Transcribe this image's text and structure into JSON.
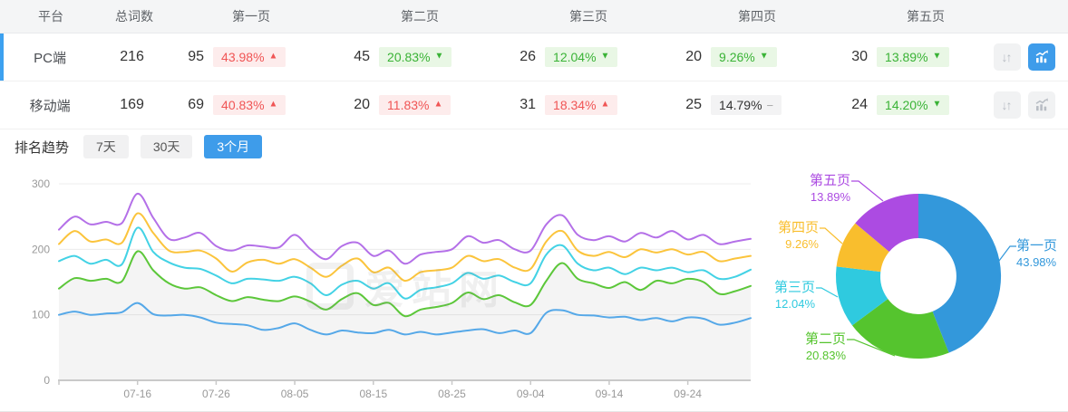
{
  "table": {
    "headers": [
      "平台",
      "总词数",
      "第一页",
      "第二页",
      "第三页",
      "第四页",
      "第五页"
    ],
    "rows": [
      {
        "platform": "PC端",
        "total": "216",
        "selected": true,
        "pages": [
          {
            "count": "95",
            "pct": "43.98%",
            "arrow": "▲",
            "state": "up"
          },
          {
            "count": "45",
            "pct": "20.83%",
            "arrow": "▼",
            "state": "down"
          },
          {
            "count": "26",
            "pct": "12.04%",
            "arrow": "▼",
            "state": "down"
          },
          {
            "count": "20",
            "pct": "9.26%",
            "arrow": "▼",
            "state": "down"
          },
          {
            "count": "30",
            "pct": "13.89%",
            "arrow": "▼",
            "state": "down"
          }
        ],
        "trend_button_active": true
      },
      {
        "platform": "移动端",
        "total": "169",
        "selected": false,
        "pages": [
          {
            "count": "69",
            "pct": "40.83%",
            "arrow": "▲",
            "state": "up"
          },
          {
            "count": "20",
            "pct": "11.83%",
            "arrow": "▲",
            "state": "up"
          },
          {
            "count": "31",
            "pct": "18.34%",
            "arrow": "▲",
            "state": "up"
          },
          {
            "count": "25",
            "pct": "14.79%",
            "arrow": "−",
            "state": "flat"
          },
          {
            "count": "24",
            "pct": "14.20%",
            "arrow": "▼",
            "state": "down"
          }
        ],
        "trend_button_active": false
      }
    ]
  },
  "trend": {
    "label": "排名趋势",
    "tabs": [
      {
        "label": "7天",
        "active": false
      },
      {
        "label": "30天",
        "active": false
      },
      {
        "label": "3个月",
        "active": true
      }
    ]
  },
  "watermark": "爱站网",
  "colors": {
    "accent": "#3e9cea",
    "up_red": "#f05555",
    "down_green": "#3ab336",
    "badge_red_bg": "#fdecec",
    "badge_green_bg": "#e9f7e5",
    "badge_gray_bg": "#f3f3f4"
  },
  "chart_data": [
    {
      "type": "line",
      "title": "排名趋势（3个月）",
      "xlabel": "",
      "ylabel": "",
      "ylim": [
        0,
        300
      ],
      "y_ticks": [
        0,
        100,
        200,
        300
      ],
      "grid": true,
      "x_ticks": [
        "07-16",
        "07-26",
        "08-05",
        "08-15",
        "08-25",
        "09-04",
        "09-14",
        "09-24"
      ],
      "tick_indices": [
        5,
        10,
        15,
        20,
        25,
        30,
        35,
        40
      ],
      "area_series_index": 1,
      "series": [
        {
          "name": "第一页",
          "color": "#55a8e8",
          "values": [
            100,
            105,
            100,
            102,
            104,
            118,
            101,
            99,
            100,
            96,
            88,
            86,
            84,
            77,
            80,
            87,
            77,
            70,
            76,
            73,
            72,
            77,
            70,
            74,
            70,
            73,
            76,
            78,
            72,
            76,
            72,
            103,
            107,
            100,
            99,
            96,
            97,
            92,
            95,
            90,
            96,
            94,
            85,
            88,
            95
          ]
        },
        {
          "name": "第二页",
          "color": "#5cc73a",
          "values": [
            140,
            156,
            152,
            155,
            151,
            197,
            168,
            148,
            140,
            142,
            130,
            121,
            127,
            123,
            121,
            128,
            120,
            108,
            124,
            133,
            115,
            118,
            98,
            108,
            112,
            118,
            134,
            124,
            130,
            119,
            115,
            152,
            179,
            155,
            148,
            141,
            150,
            138,
            152,
            148,
            155,
            150,
            132,
            136,
            144
          ]
        },
        {
          "name": "第三页",
          "color": "#43d2e5",
          "values": [
            182,
            190,
            178,
            184,
            177,
            233,
            196,
            180,
            172,
            170,
            160,
            148,
            155,
            154,
            152,
            158,
            148,
            130,
            146,
            152,
            140,
            148,
            125,
            138,
            142,
            148,
            164,
            155,
            160,
            150,
            148,
            192,
            206,
            178,
            168,
            172,
            162,
            172,
            168,
            172,
            165,
            168,
            155,
            158,
            169
          ]
        },
        {
          "name": "第四页",
          "color": "#fbc43c",
          "values": [
            208,
            228,
            212,
            215,
            210,
            255,
            225,
            198,
            196,
            198,
            186,
            166,
            180,
            184,
            178,
            185,
            172,
            158,
            175,
            186,
            165,
            172,
            152,
            165,
            168,
            172,
            190,
            182,
            185,
            172,
            170,
            212,
            228,
            198,
            190,
            196,
            188,
            200,
            195,
            200,
            192,
            196,
            182,
            186,
            190
          ]
        },
        {
          "name": "第五页",
          "color": "#b470e8",
          "values": [
            230,
            250,
            238,
            242,
            240,
            285,
            248,
            216,
            218,
            225,
            205,
            198,
            206,
            204,
            203,
            222,
            200,
            185,
            205,
            210,
            190,
            198,
            178,
            192,
            196,
            200,
            220,
            210,
            214,
            200,
            198,
            238,
            252,
            222,
            214,
            220,
            212,
            225,
            218,
            228,
            215,
            222,
            208,
            212,
            216
          ]
        }
      ]
    },
    {
      "type": "pie",
      "donut": true,
      "slices": [
        {
          "label": "第一页",
          "value": 43.98,
          "pct_label": "43.98%",
          "color": "#3398db"
        },
        {
          "label": "第二页",
          "value": 20.83,
          "pct_label": "20.83%",
          "color": "#55c42e"
        },
        {
          "label": "第三页",
          "value": 12.04,
          "pct_label": "12.04%",
          "color": "#2fcadf"
        },
        {
          "label": "第四页",
          "value": 9.26,
          "pct_label": "9.26%",
          "color": "#f9be2d"
        },
        {
          "label": "第五页",
          "value": 13.89,
          "pct_label": "13.89%",
          "color": "#ac4be2"
        }
      ]
    }
  ]
}
